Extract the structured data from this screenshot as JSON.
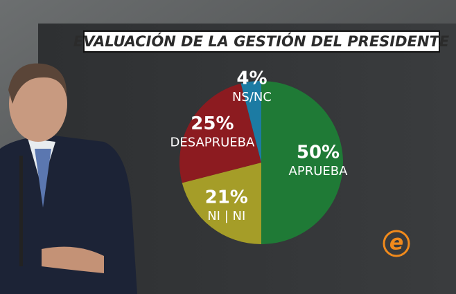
{
  "chart_data": {
    "type": "pie",
    "title": "EVALUACIÓN DE LA GESTIÓN DEL PRESIDENTE",
    "categories": [
      "APRUEBA",
      "NI | NI",
      "DESAPRUEBA",
      "NS/NC"
    ],
    "values": [
      50,
      21,
      25,
      4
    ],
    "value_labels": [
      "50%",
      "21%",
      "25%",
      "4%"
    ],
    "colors": [
      "#1f7a36",
      "#a59d28",
      "#8c1b20",
      "#1c7ba3"
    ]
  },
  "logo": "e"
}
